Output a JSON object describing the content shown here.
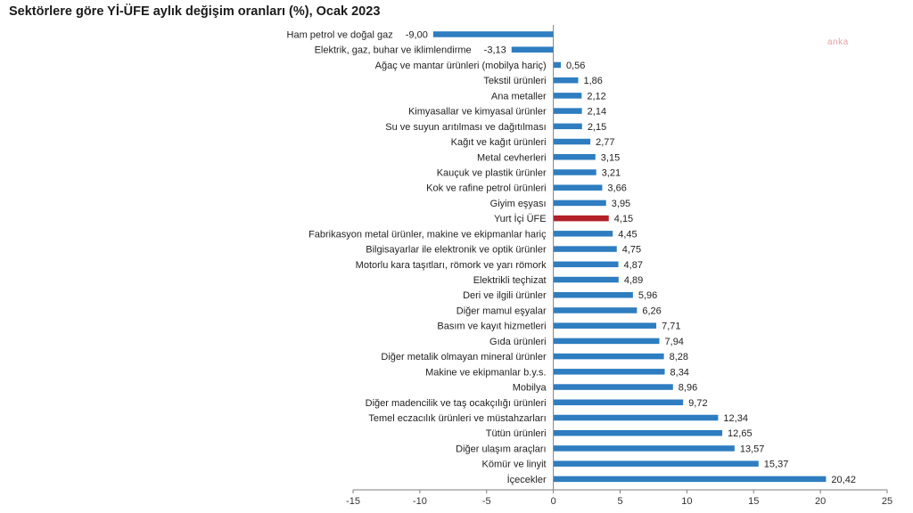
{
  "title": "Sektörlere göre Yİ-ÜFE aylık değişim oranları (%), Ocak 2023",
  "watermark": "anka",
  "colors": {
    "bar": "#2E7DC0",
    "highlight": "#B22028",
    "axis": "#7f7f7f"
  },
  "chart_data": {
    "type": "bar",
    "orientation": "horizontal",
    "title": "Sektörlere göre Yİ-ÜFE aylık değişim oranları (%), Ocak 2023",
    "xlabel": "",
    "ylabel": "",
    "xlim": [
      -15,
      25
    ],
    "xticks": [
      -15,
      -10,
      -5,
      0,
      5,
      10,
      15,
      20,
      25
    ],
    "grid": false,
    "highlight_category": "Yurt İçi ÜFE",
    "categories": [
      "Ham petrol ve doğal gaz",
      "Elektrik, gaz, buhar ve iklimlendirme",
      "Ağaç ve mantar ürünleri (mobilya hariç)",
      "Tekstil ürünleri",
      "Ana metaller",
      "Kimyasallar ve kimyasal ürünler",
      "Su ve suyun arıtılması ve dağıtılması",
      "Kağıt ve kağıt ürünleri",
      "Metal cevherleri",
      "Kauçuk ve plastik ürünler",
      "Kok ve rafine petrol ürünleri",
      "Giyim eşyası",
      "Yurt İçi ÜFE",
      "Fabrikasyon metal ürünler, makine ve ekipmanlar hariç",
      "Bilgisayarlar ile elektronik ve optik ürünler",
      "Motorlu kara taşıtları, römork ve yarı römork",
      "Elektrikli teçhizat",
      "Deri ve ilgili ürünler",
      "Diğer mamul eşyalar",
      "Basım ve kayıt hizmetleri",
      "Gıda ürünleri",
      "Diğer metalik olmayan mineral ürünler",
      "Makine ve ekipmanlar b.y.s.",
      "Mobilya",
      "Diğer madencilik ve taş ocakçılığı ürünleri",
      "Temel eczacılık ürünleri ve müstahzarları",
      "Tütün ürünleri",
      "Diğer ulaşım araçları",
      "Kömür ve linyit",
      "İçecekler"
    ],
    "values": [
      -9.0,
      -3.13,
      0.56,
      1.86,
      2.12,
      2.14,
      2.15,
      2.77,
      3.15,
      3.21,
      3.66,
      3.95,
      4.15,
      4.45,
      4.75,
      4.87,
      4.89,
      5.96,
      6.26,
      7.71,
      7.94,
      8.28,
      8.34,
      8.96,
      9.72,
      12.34,
      12.65,
      13.57,
      15.37,
      20.42
    ],
    "value_labels": [
      "-9,00",
      "-3,13",
      "0,56",
      "1,86",
      "2,12",
      "2,14",
      "2,15",
      "2,77",
      "3,15",
      "3,21",
      "3,66",
      "3,95",
      "4,15",
      "4,45",
      "4,75",
      "4,87",
      "4,89",
      "5,96",
      "6,26",
      "7,71",
      "7,94",
      "8,28",
      "8,34",
      "8,96",
      "9,72",
      "12,34",
      "12,65",
      "13,57",
      "15,37",
      "20,42"
    ],
    "tick_labels": [
      "-15",
      "-10",
      "-5",
      "0",
      "5",
      "10",
      "15",
      "20",
      "25"
    ]
  }
}
